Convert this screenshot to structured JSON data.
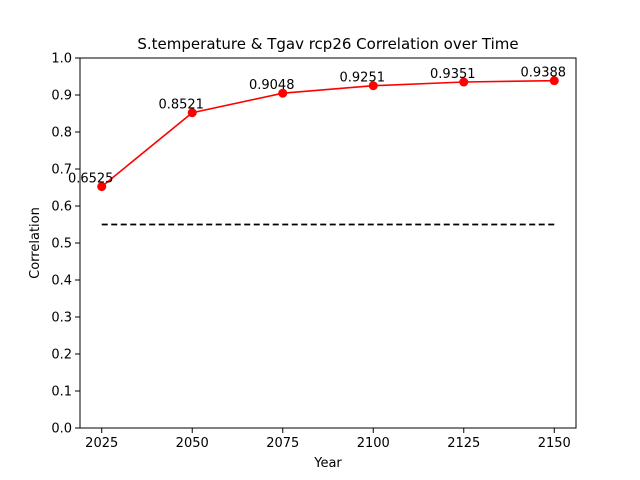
{
  "chart_data": {
    "type": "line",
    "title": "S.temperature & Tgav rcp26 Correlation over Time",
    "xlabel": "Year",
    "ylabel": "Correlation",
    "x": [
      2025,
      2050,
      2075,
      2100,
      2125,
      2150
    ],
    "series": [
      {
        "values": [
          0.6525,
          0.8521,
          0.9048,
          0.9251,
          0.9351,
          0.9388
        ],
        "labels": [
          "0.6525",
          "0.8521",
          "0.9048",
          "0.9251",
          "0.9351",
          "0.9388"
        ],
        "color": "#ff0000",
        "marker": "circle"
      }
    ],
    "reference_line": {
      "y": 0.55,
      "x_range": [
        2025,
        2150
      ],
      "color": "#000000",
      "style": "dashed"
    },
    "xlim": [
      2019,
      2156
    ],
    "ylim": [
      0,
      1.0
    ],
    "xticks": [
      2025,
      2050,
      2075,
      2100,
      2125,
      2150
    ],
    "xtick_labels": [
      "2025",
      "2050",
      "2075",
      "2100",
      "2125",
      "2150"
    ],
    "yticks": [
      0,
      0.1,
      0.2,
      0.3,
      0.4,
      0.5,
      0.6,
      0.7,
      0.8,
      0.9,
      1.0
    ],
    "ytick_labels": [
      "0.0",
      "0.1",
      "0.2",
      "0.3",
      "0.4",
      "0.5",
      "0.6",
      "0.7",
      "0.8",
      "0.9",
      "1.0"
    ],
    "grid": false,
    "legend": "none"
  }
}
